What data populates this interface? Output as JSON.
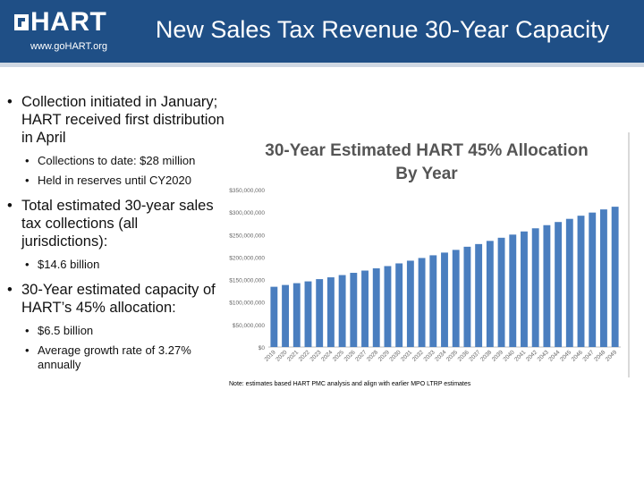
{
  "header": {
    "logo_text": "HART",
    "logo_url": "www.goHART.org",
    "title": "New Sales Tax Revenue 30-Year Capacity"
  },
  "colors": {
    "header_bg": "#1f4f86",
    "bar": "#4a7ebf"
  },
  "bullets": {
    "b1": "Collection initiated in January; HART received first distribution in April",
    "b1_sub1": "Collections to date: $28 million",
    "b1_sub2": "Held in reserves until CY2020",
    "b2": "Total estimated 30-year sales tax collections (all jurisdictions):",
    "b2_sub1": "$14.6 billion",
    "b3": "30-Year estimated capacity of HART’s 45% allocation:",
    "b3_sub1": "$6.5 billion",
    "b3_sub2": "Average growth rate of 3.27% annually"
  },
  "chart_data": {
    "type": "bar",
    "title": "30-Year Estimated HART 45% Allocation By Year",
    "title_lines": [
      "30-Year Estimated HART 45% Allocation",
      "By Year"
    ],
    "note": "Note: estimates based HART PMC analysis and align with earlier MPO LTRP estimates",
    "categories": [
      "2019",
      "2020",
      "2021",
      "2022",
      "2023",
      "2024",
      "2025",
      "2026",
      "2027",
      "2028",
      "2029",
      "2030",
      "2031",
      "2032",
      "2033",
      "2034",
      "2035",
      "2036",
      "2037",
      "2038",
      "2039",
      "2040",
      "2041",
      "2042",
      "2043",
      "2044",
      "2045",
      "2046",
      "2047",
      "2048",
      "2049"
    ],
    "values": [
      134000000,
      138000000,
      142000000,
      146000000,
      151000000,
      155000000,
      160000000,
      165000000,
      170000000,
      175000000,
      180000000,
      186000000,
      192000000,
      198000000,
      204000000,
      210000000,
      216000000,
      223000000,
      229000000,
      236000000,
      243000000,
      250000000,
      257000000,
      264000000,
      271000000,
      278000000,
      285000000,
      292000000,
      299000000,
      306000000,
      312000000
    ],
    "ylim": [
      0,
      350000000
    ],
    "yticks": [
      0,
      50000000,
      100000000,
      150000000,
      200000000,
      250000000,
      300000000,
      350000000
    ],
    "ytick_labels": [
      "$0",
      "$50,000,000",
      "$100,000,000",
      "$150,000,000",
      "$200,000,000",
      "$250,000,000",
      "$300,000,000",
      "$350,000,000"
    ]
  }
}
